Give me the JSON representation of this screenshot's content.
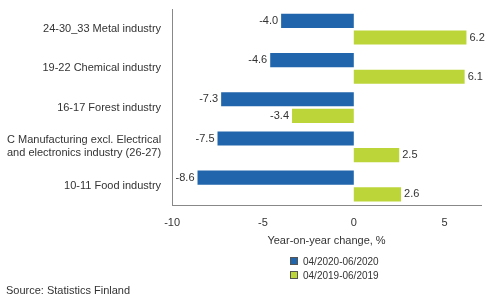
{
  "chart_data": {
    "type": "bar",
    "orientation": "horizontal",
    "categories": [
      "24-30_33 Metal industry",
      "19-22 Chemical industry",
      "16-17 Forest industry",
      "C Manufacturing excl. Electrical and electronics industry (26-27)",
      "10-11 Food industry"
    ],
    "series": [
      {
        "name": "04/2020-06/2020",
        "color": "#2166ac",
        "values": [
          -4.0,
          -4.6,
          -7.3,
          -7.5,
          -8.6
        ],
        "value_labels": [
          "-4.0",
          "-4.6",
          "-7.3",
          "-7.5",
          "-8.6"
        ]
      },
      {
        "name": "04/2019-06/2019",
        "color": "#bcd63a",
        "values": [
          6.2,
          6.1,
          -3.4,
          2.5,
          2.6
        ],
        "value_labels": [
          "6.2",
          "6.1",
          "-3.4",
          "2.5",
          "2.6"
        ]
      }
    ],
    "x_label": "Year-on-year change, %",
    "xlim": [
      -10,
      7
    ],
    "xticks": [
      -10,
      -5,
      0,
      5
    ],
    "grid": false,
    "data_labels": true,
    "legend": "bottom-right",
    "source": "Source: Statistics Finland"
  }
}
